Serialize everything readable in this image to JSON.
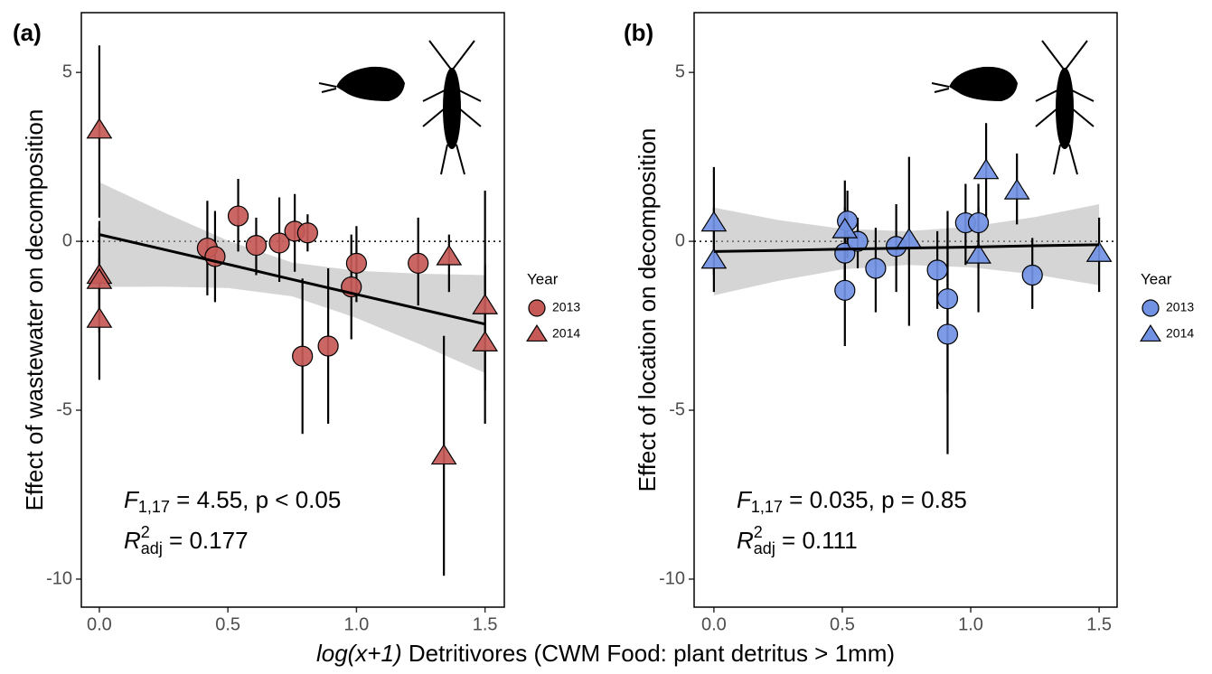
{
  "chart_data": [
    {
      "type": "scatter",
      "panel_label": "(a)",
      "ylabel": "Effect of wastewater on decomposition",
      "xlim": [
        -0.07,
        1.575
      ],
      "ylim": [
        -10.83,
        6.77
      ],
      "xticks": [
        {
          "value": 0,
          "label": "0.0"
        },
        {
          "value": 0.5,
          "label": "0.5"
        },
        {
          "value": 1,
          "label": "1.0"
        },
        {
          "value": 1.5,
          "label": "1.5"
        }
      ],
      "yticks": [
        5,
        0,
        -5,
        -10
      ],
      "hline": 0,
      "legend_title": "Year",
      "series": [
        {
          "name": "2013",
          "marker": "circle",
          "color": "#c65a57",
          "x": [
            0.42,
            0.45,
            0.54,
            0.61,
            0.7,
            0.76,
            0.81,
            0.79,
            0.89,
            0.98,
            1.0,
            1.24
          ],
          "values": [
            -0.2,
            -0.45,
            0.75,
            -0.12,
            -0.05,
            0.3,
            0.25,
            -3.4,
            -3.1,
            -1.35,
            -0.65,
            -0.65
          ],
          "lower": [
            -1.6,
            -1.8,
            -0.3,
            -1.0,
            -1.2,
            -0.9,
            -0.3,
            -5.7,
            -5.4,
            -2.9,
            -1.8,
            -1.9
          ],
          "upper": [
            1.2,
            0.9,
            1.85,
            0.7,
            1.3,
            1.4,
            0.8,
            -1.1,
            -0.8,
            0.2,
            0.45,
            0.7
          ]
        },
        {
          "name": "2014",
          "marker": "triangle",
          "color": "#c65a57",
          "x": [
            0,
            0,
            0,
            0,
            1.34,
            1.36,
            1.5,
            1.5
          ],
          "values": [
            3.3,
            -1.0,
            -1.15,
            -2.3,
            -6.35,
            -0.45,
            -1.9,
            -3.0
          ],
          "lower": [
            0.7,
            -2.6,
            -2.7,
            -4.1,
            -9.9,
            -1.5,
            -5.4,
            -4.4
          ],
          "upper": [
            5.8,
            0.6,
            0.4,
            -0.5,
            -2.8,
            0.2,
            1.5,
            -0.7
          ]
        }
      ],
      "fit": {
        "x": [
          0,
          0.25,
          0.5,
          0.75,
          1,
          1.25,
          1.5
        ],
        "y": [
          0.2,
          -0.24,
          -0.68,
          -1.13,
          -1.57,
          -2.01,
          -2.45
        ],
        "lower": [
          -1.35,
          -1.34,
          -1.38,
          -1.63,
          -2.27,
          -3.06,
          -3.9
        ],
        "upper": [
          1.75,
          0.86,
          0.02,
          -0.63,
          -0.87,
          -0.96,
          -1.0
        ]
      },
      "stats": {
        "f": "F",
        "f_sub": "1,17",
        "f_rest": " = 4.55,  p < 0.05",
        "r": "R",
        "r_sup": "2",
        "r_sub": "adj",
        "r_rest": " = 0.177"
      }
    },
    {
      "type": "scatter",
      "panel_label": "(b)",
      "ylabel": "Effect of location on decomposition",
      "xlim": [
        -0.077,
        1.57
      ],
      "ylim": [
        -10.83,
        6.77
      ],
      "xticks": [
        {
          "value": 0,
          "label": "0.0"
        },
        {
          "value": 0.5,
          "label": "0.5"
        },
        {
          "value": 1,
          "label": "1.0"
        },
        {
          "value": 1.5,
          "label": "1.5"
        }
      ],
      "yticks": [
        5,
        0,
        -5,
        -10
      ],
      "hline": 0,
      "legend_title": "Year",
      "series": [
        {
          "name": "2013",
          "marker": "circle",
          "color": "#7191e3",
          "x": [
            0.51,
            0.51,
            0.52,
            0.56,
            0.63,
            0.71,
            0.87,
            0.91,
            0.91,
            0.98,
            1.03,
            1.24
          ],
          "values": [
            -0.35,
            -1.45,
            0.6,
            0.0,
            -0.8,
            -0.15,
            -0.85,
            -1.7,
            -2.75,
            0.55,
            0.55,
            -1.0
          ],
          "lower": [
            -1.6,
            -3.1,
            -0.5,
            -0.8,
            -2.1,
            -1.5,
            -2.0,
            -4.5,
            -6.3,
            -0.7,
            -0.5,
            -2.0
          ],
          "upper": [
            1.0,
            -0.1,
            1.5,
            0.7,
            0.4,
            1.1,
            0.3,
            0.9,
            0.4,
            1.7,
            1.7,
            0.1
          ]
        },
        {
          "name": "2014",
          "marker": "triangle",
          "color": "#7191e3",
          "x": [
            0,
            0,
            0.51,
            0.76,
            1.03,
            1.06,
            1.18,
            1.5
          ],
          "values": [
            0.55,
            -0.55,
            0.35,
            0.05,
            -0.4,
            2.1,
            1.5,
            -0.35
          ],
          "lower": [
            -1.0,
            -1.5,
            -1.2,
            -2.5,
            -2.1,
            0.7,
            0.5,
            -1.5
          ],
          "upper": [
            2.2,
            1.0,
            1.8,
            2.5,
            1.0,
            3.5,
            2.6,
            0.7
          ]
        }
      ],
      "fit": {
        "x": [
          0,
          0.25,
          0.5,
          0.75,
          1,
          1.25,
          1.5
        ],
        "y": [
          -0.3,
          -0.27,
          -0.23,
          -0.2,
          -0.17,
          -0.13,
          -0.1
        ],
        "lower": [
          -1.6,
          -1.17,
          -0.83,
          -0.7,
          -0.77,
          -0.98,
          -1.3
        ],
        "upper": [
          1.0,
          0.63,
          0.37,
          0.3,
          0.43,
          0.72,
          1.1
        ]
      },
      "stats": {
        "f": "F",
        "f_sub": "1,17",
        "f_rest": " = 0.035,  p = 0.85",
        "r": "R",
        "r_sup": "2",
        "r_sub": "adj",
        "r_rest": " = 0.111"
      }
    }
  ],
  "shared": {
    "xlabel_italic": "log(x+1)",
    "xlabel_rest": " Detritivores (CWM Food: plant detritus > 1mm)"
  }
}
